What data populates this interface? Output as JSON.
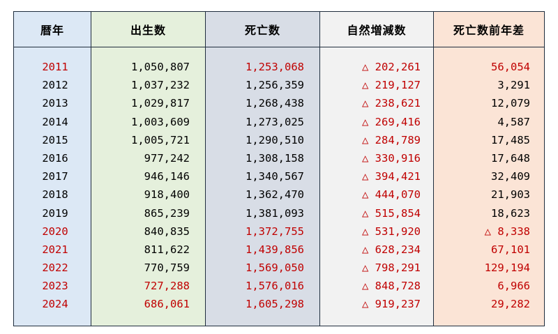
{
  "headers": {
    "year": "暦年",
    "births": "出生数",
    "deaths": "死亡数",
    "natural_change": "自然増減数",
    "death_yoy": "死亡数前年差"
  },
  "colors": {
    "red": "#c00000",
    "year_col": "#dce8f5",
    "births_col": "#e5f0dc",
    "deaths_col": "#d8dde6",
    "natural_col": "#f2f2f2",
    "yoy_col": "#fbe4d6"
  },
  "rows": [
    {
      "year": "2011",
      "births": "1,050,807",
      "deaths": "1,253,068",
      "natural": "△ 202,261",
      "yoy": "56,054"
    },
    {
      "year": "2012",
      "births": "1,037,232",
      "deaths": "1,256,359",
      "natural": "△ 219,127",
      "yoy": "3,291"
    },
    {
      "year": "2013",
      "births": "1,029,817",
      "deaths": "1,268,438",
      "natural": "△ 238,621",
      "yoy": "12,079"
    },
    {
      "year": "2014",
      "births": "1,003,609",
      "deaths": "1,273,025",
      "natural": "△ 269,416",
      "yoy": "4,587"
    },
    {
      "year": "2015",
      "births": "1,005,721",
      "deaths": "1,290,510",
      "natural": "△ 284,789",
      "yoy": "17,485"
    },
    {
      "year": "2016",
      "births": "977,242",
      "deaths": "1,308,158",
      "natural": "△ 330,916",
      "yoy": "17,648"
    },
    {
      "year": "2017",
      "births": "946,146",
      "deaths": "1,340,567",
      "natural": "△ 394,421",
      "yoy": "32,409"
    },
    {
      "year": "2018",
      "births": "918,400",
      "deaths": "1,362,470",
      "natural": "△ 444,070",
      "yoy": "21,903"
    },
    {
      "year": "2019",
      "births": "865,239",
      "deaths": "1,381,093",
      "natural": "△ 515,854",
      "yoy": "18,623"
    },
    {
      "year": "2020",
      "births": "840,835",
      "deaths": "1,372,755",
      "natural": "△ 531,920",
      "yoy": "△ 8,338"
    },
    {
      "year": "2021",
      "births": "811,622",
      "deaths": "1,439,856",
      "natural": "△ 628,234",
      "yoy": "67,101"
    },
    {
      "year": "2022",
      "births": "770,759",
      "deaths": "1,569,050",
      "natural": "△ 798,291",
      "yoy": "129,194"
    },
    {
      "year": "2023",
      "births": "727,288",
      "deaths": "1,576,016",
      "natural": "△ 848,728",
      "yoy": "6,966"
    },
    {
      "year": "2024",
      "births": "686,061",
      "deaths": "1,605,298",
      "natural": "△ 919,237",
      "yoy": "29,282"
    }
  ]
}
